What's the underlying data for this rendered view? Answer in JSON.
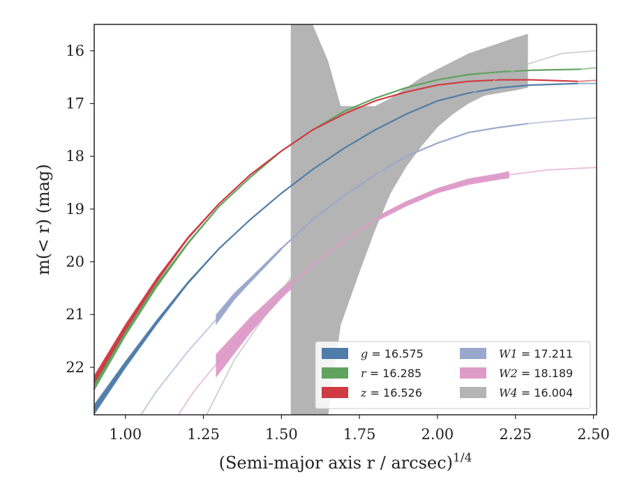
{
  "chart_data": {
    "type": "line",
    "title": "",
    "xlabel": "(Semi-major axis r / arcsec)",
    "xlabel_superscript": "1/4",
    "ylabel": "m(< r) (mag)",
    "xlim": [
      0.9,
      2.51
    ],
    "ylim": [
      22.9,
      15.5
    ],
    "y_inverted": true,
    "xticks": [
      "1.00",
      "1.25",
      "1.50",
      "1.75",
      "2.00",
      "2.25",
      "2.50"
    ],
    "yticks": [
      "16",
      "17",
      "18",
      "19",
      "20",
      "21",
      "22"
    ],
    "grid": false,
    "legend_position": "lower-right",
    "series": [
      {
        "name": "g = 16.575",
        "label_var": "g",
        "label_value": "= 16.575",
        "color": "#4f7ca8",
        "x": [
          0.9,
          1.0,
          1.1,
          1.2,
          1.3,
          1.4,
          1.5,
          1.6,
          1.7,
          1.8,
          1.9,
          2.0,
          2.1,
          2.2,
          2.3,
          2.45
        ],
        "y": [
          22.8,
          21.95,
          21.15,
          20.4,
          19.75,
          19.2,
          18.7,
          18.25,
          17.85,
          17.5,
          17.2,
          16.95,
          16.8,
          16.7,
          16.65,
          16.62
        ],
        "band_x": [
          0.9,
          1.0,
          1.1,
          1.2,
          1.3,
          1.4,
          1.5
        ],
        "band_lower": [
          22.7,
          21.88,
          21.1,
          20.37,
          19.73,
          19.19,
          18.69
        ],
        "band_upper": [
          22.9,
          22.02,
          21.2,
          20.43,
          19.77,
          19.21,
          18.71
        ],
        "extrap_x": [
          2.45,
          2.51
        ],
        "extrap_y": [
          16.62,
          16.62
        ]
      },
      {
        "name": "r = 16.285",
        "label_var": "r",
        "label_value": "= 16.285",
        "color": "#5fa35f",
        "x": [
          0.9,
          1.0,
          1.1,
          1.2,
          1.3,
          1.4,
          1.5,
          1.6,
          1.7,
          1.8,
          1.9,
          2.0,
          2.1,
          2.2,
          2.3,
          2.46
        ],
        "y": [
          22.35,
          21.35,
          20.45,
          19.65,
          18.95,
          18.4,
          17.9,
          17.5,
          17.15,
          16.9,
          16.7,
          16.55,
          16.45,
          16.4,
          16.37,
          16.35
        ],
        "band_x": [
          0.9,
          1.0,
          1.1,
          1.2,
          1.3
        ],
        "band_lower": [
          22.25,
          21.28,
          20.4,
          19.62,
          18.93
        ],
        "band_upper": [
          22.45,
          21.42,
          20.5,
          19.68,
          18.97
        ],
        "extrap_x": [
          2.46,
          2.51
        ],
        "extrap_y": [
          16.35,
          16.32
        ]
      },
      {
        "name": "z = 16.526",
        "label_var": "z",
        "label_value": "= 16.526",
        "color": "#d03a42",
        "x": [
          0.9,
          1.0,
          1.1,
          1.2,
          1.3,
          1.4,
          1.5,
          1.6,
          1.7,
          1.8,
          1.9,
          2.0,
          2.1,
          2.2,
          2.3,
          2.45
        ],
        "y": [
          22.25,
          21.25,
          20.35,
          19.55,
          18.9,
          18.35,
          17.9,
          17.5,
          17.2,
          16.95,
          16.78,
          16.65,
          16.58,
          16.55,
          16.55,
          16.58
        ],
        "band_x": [
          0.9,
          1.0,
          1.1,
          1.2,
          1.3
        ],
        "band_lower": [
          22.15,
          21.18,
          20.3,
          19.52,
          18.88
        ],
        "band_upper": [
          22.35,
          21.32,
          20.4,
          19.58,
          18.92
        ],
        "extrap_x": [
          2.45,
          2.51
        ],
        "extrap_y": [
          16.58,
          16.56
        ]
      },
      {
        "name": "W1 = 17.211",
        "label_var": "W1",
        "label_value": "= 17.211",
        "color": "#9aa8cc",
        "x": [
          1.29,
          1.35,
          1.4,
          1.5,
          1.6,
          1.7,
          1.8,
          1.9,
          2.0,
          2.1,
          2.2,
          2.29
        ],
        "y": [
          21.1,
          20.65,
          20.35,
          19.75,
          19.2,
          18.75,
          18.35,
          18.0,
          17.75,
          17.55,
          17.45,
          17.38
        ],
        "band_x": [
          1.29,
          1.35,
          1.4,
          1.5
        ],
        "band_lower": [
          21.0,
          20.58,
          20.3,
          19.72
        ],
        "band_upper": [
          21.2,
          20.72,
          20.4,
          19.78
        ],
        "extrap_x": [
          1.05,
          1.1,
          1.2,
          1.29,
          2.29,
          2.4,
          2.51
        ],
        "extrap_y": [
          22.9,
          22.45,
          21.7,
          21.1,
          17.38,
          17.32,
          17.27
        ]
      },
      {
        "name": "W2 = 18.189",
        "label_var": "W2",
        "label_value": "= 18.189",
        "color": "#de9ac8",
        "x": [
          1.29,
          1.4,
          1.5,
          1.6,
          1.7,
          1.8,
          1.9,
          2.0,
          2.1,
          2.2,
          2.23
        ],
        "y": [
          21.95,
          21.2,
          20.6,
          20.05,
          19.6,
          19.2,
          18.9,
          18.65,
          18.48,
          18.38,
          18.35
        ],
        "band_x": [
          1.29,
          1.4,
          1.5,
          1.6,
          1.7,
          1.8,
          1.9,
          2.0,
          2.1,
          2.2,
          2.23
        ],
        "band_lower": [
          21.75,
          21.05,
          20.5,
          19.98,
          19.54,
          19.15,
          18.85,
          18.6,
          18.42,
          18.32,
          18.28
        ],
        "band_upper": [
          22.2,
          21.35,
          20.7,
          20.12,
          19.66,
          19.25,
          18.95,
          18.7,
          18.54,
          18.44,
          18.42
        ],
        "extrap_x": [
          1.17,
          1.22,
          1.29,
          2.23,
          2.35,
          2.51
        ],
        "extrap_y": [
          22.9,
          22.45,
          21.95,
          18.35,
          18.26,
          18.21
        ]
      },
      {
        "name": "W4 = 16.004",
        "label_var": "W4",
        "label_value": "= 16.004",
        "color": "#b4b4b4",
        "x": [
          1.53,
          1.6,
          1.7,
          1.8,
          1.9,
          2.0,
          2.1,
          2.2,
          2.29
        ],
        "y": [
          20.3,
          19.7,
          19.0,
          18.4,
          17.8,
          17.3,
          16.85,
          16.5,
          16.25
        ],
        "band_x": [
          1.53,
          1.6,
          1.65,
          1.69,
          1.75,
          1.8,
          1.85,
          1.9,
          1.95,
          2.0,
          2.05,
          2.1,
          2.15,
          2.2,
          2.25,
          2.29
        ],
        "band_lower": [
          22.9,
          22.9,
          22.9,
          21.2,
          20.2,
          19.4,
          18.7,
          18.2,
          17.8,
          17.45,
          17.2,
          17.0,
          16.85,
          16.8,
          16.75,
          16.7
        ],
        "band_upper": [
          15.5,
          15.5,
          16.2,
          17.05,
          17.05,
          17.05,
          16.9,
          16.7,
          16.5,
          16.35,
          16.2,
          16.05,
          15.95,
          15.85,
          15.75,
          15.68
        ],
        "extrap_x": [
          1.26,
          1.35,
          1.45,
          1.53,
          2.29,
          2.4,
          2.51
        ],
        "extrap_y": [
          22.9,
          21.85,
          21.0,
          20.3,
          16.25,
          16.05,
          16.0
        ]
      }
    ]
  }
}
